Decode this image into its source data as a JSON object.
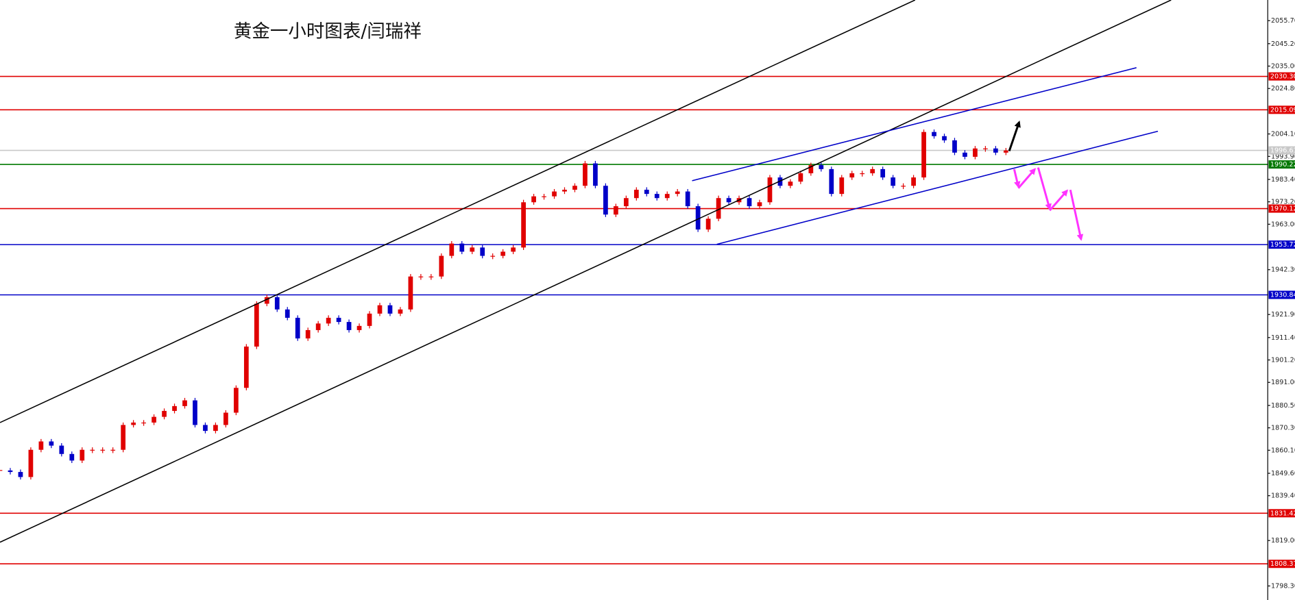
{
  "chart_data": {
    "type": "candlestick",
    "title": "黄金一小时图表/闫瑞祥",
    "up_color": "#e00000",
    "down_color": "#0000c8",
    "closes": [
      1850.9,
      1850.2,
      1847.9,
      1860.3,
      1864.1,
      1862.2,
      1858.4,
      1855.4,
      1860.3,
      1860.3,
      1860.3,
      1860.3,
      1871.6,
      1872.7,
      1872.7,
      1875.3,
      1878.0,
      1880.2,
      1882.8,
      1871.6,
      1868.9,
      1871.6,
      1877.2,
      1888.5,
      1907.3,
      1926.8,
      1929.8,
      1924.2,
      1920.4,
      1911.0,
      1914.8,
      1917.8,
      1920.4,
      1918.5,
      1914.8,
      1916.7,
      1922.3,
      1926.1,
      1922.3,
      1924.2,
      1939.2,
      1939.2,
      1939.2,
      1948.6,
      1954.2,
      1950.5,
      1952.4,
      1948.6,
      1948.6,
      1950.5,
      1952.4,
      1973.0,
      1975.7,
      1975.7,
      1977.9,
      1978.7,
      1980.5,
      1990.7,
      1980.5,
      1967.4,
      1971.2,
      1974.9,
      1978.7,
      1976.8,
      1974.9,
      1976.8,
      1977.9,
      1971.2,
      1960.6,
      1965.5,
      1974.9,
      1973.0,
      1974.9,
      1971.2,
      1973.0,
      1984.3,
      1980.5,
      1982.4,
      1986.2,
      1989.9,
      1988.1,
      1976.8,
      1984.3,
      1986.2,
      1986.2,
      1988.1,
      1984.3,
      1980.5,
      1980.5,
      1984.3,
      2005.0,
      2003.1,
      2001.2,
      1995.6,
      1993.7,
      1997.5,
      1997.5,
      1995.6,
      1996.6
    ],
    "ylim": [
      1791.91,
      2065.09
    ],
    "yticks": [
      {
        "value": 2055.7,
        "label": "2055.70"
      },
      {
        "value": 2045.2,
        "label": "2045.20"
      },
      {
        "value": 2035,
        "label": "2035.00"
      },
      {
        "value": 2024.8,
        "label": "2024.80"
      },
      {
        "value": 2004.1,
        "label": "2004.10"
      },
      {
        "value": 1993.9,
        "label": "1993.90"
      },
      {
        "value": 1983.4,
        "label": "1983.40"
      },
      {
        "value": 1973.2,
        "label": "1973.20"
      },
      {
        "value": 1963,
        "label": "1963.00"
      },
      {
        "value": 1942.3,
        "label": "1942.30"
      },
      {
        "value": 1921.9,
        "label": "1921.90"
      },
      {
        "value": 1911.4,
        "label": "1911.40"
      },
      {
        "value": 1901.2,
        "label": "1901.20"
      },
      {
        "value": 1891,
        "label": "1891.00"
      },
      {
        "value": 1880.5,
        "label": "1880.50"
      },
      {
        "value": 1870.3,
        "label": "1870.30"
      },
      {
        "value": 1860.1,
        "label": "1860.10"
      },
      {
        "value": 1849.6,
        "label": "1849.60"
      },
      {
        "value": 1839.4,
        "label": "1839.40"
      },
      {
        "value": 1819,
        "label": "1819.00"
      },
      {
        "value": 1798.3,
        "label": "1798.30"
      }
    ],
    "levels": [
      {
        "value": 2030.3,
        "label": "2030.30",
        "color": "#e00000"
      },
      {
        "value": 2015.09,
        "label": "2015.09",
        "color": "#e00000"
      },
      {
        "value": 1996.61,
        "label": "1996.61",
        "color": "#c8c8c8"
      },
      {
        "value": 1990.22,
        "label": "1990.22",
        "color": "#007800"
      },
      {
        "value": 1970.12,
        "label": "1970.12",
        "color": "#e00000"
      },
      {
        "value": 1953.72,
        "label": "1953.72",
        "color": "#0000c8"
      },
      {
        "value": 1930.84,
        "label": "1930.84",
        "color": "#0000c8"
      },
      {
        "value": 1831.42,
        "label": "1831.42",
        "color": "#e00000"
      },
      {
        "value": 1808.37,
        "label": "1808.37",
        "color": "#e00000"
      }
    ]
  }
}
